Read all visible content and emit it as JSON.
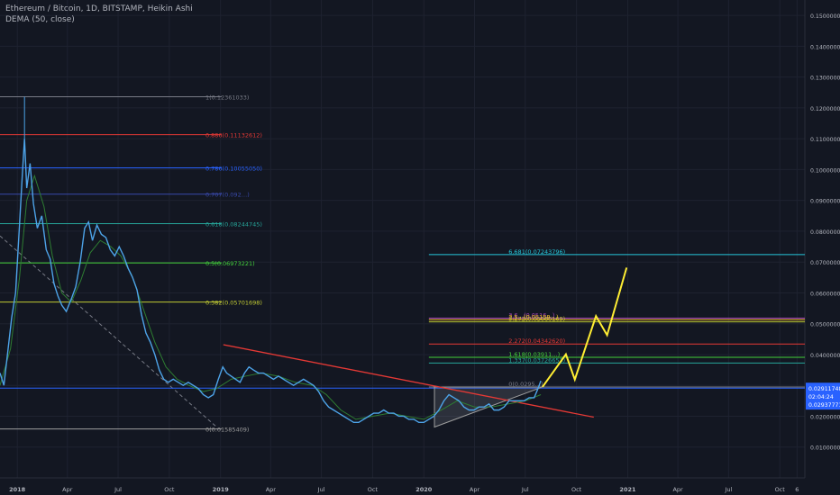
{
  "legend": {
    "title": "Ethereum / Bitcoin, 1D, BITSTAMP, Heikin Ashi",
    "indicator": "DEMA (50, close)"
  },
  "chart_data": {
    "type": "line",
    "title": "Ethereum / Bitcoin, 1D, BITSTAMP, Heikin Ashi",
    "xlabel": "",
    "ylabel": "",
    "grid": true,
    "ylim": [
      0,
      0.155
    ],
    "xlim": [
      "2017-12-01",
      "2021-11-15"
    ],
    "x_ticks": [
      {
        "date": "2018-01-01",
        "label": "2018",
        "bold": true
      },
      {
        "date": "2018-04-01",
        "label": "Apr"
      },
      {
        "date": "2018-07-01",
        "label": "Jul"
      },
      {
        "date": "2018-10-01",
        "label": "Oct"
      },
      {
        "date": "2019-01-01",
        "label": "2019",
        "bold": true
      },
      {
        "date": "2019-04-01",
        "label": "Apr"
      },
      {
        "date": "2019-07-01",
        "label": "Jul"
      },
      {
        "date": "2019-10-01",
        "label": "Oct"
      },
      {
        "date": "2020-01-01",
        "label": "2020",
        "bold": true
      },
      {
        "date": "2020-04-01",
        "label": "Apr"
      },
      {
        "date": "2020-07-01",
        "label": "Jul"
      },
      {
        "date": "2020-10-01",
        "label": "Oct"
      },
      {
        "date": "2021-01-01",
        "label": "2021",
        "bold": true
      },
      {
        "date": "2021-04-01",
        "label": "Apr"
      },
      {
        "date": "2021-07-01",
        "label": "Jul"
      },
      {
        "date": "2021-10-01",
        "label": "Oct"
      },
      {
        "date": "2021-11-01",
        "label": "6"
      }
    ],
    "y_ticks": [
      {
        "value": 0.15,
        "label": "0.15000000"
      },
      {
        "value": 0.14,
        "label": "0.14000000"
      },
      {
        "value": 0.13,
        "label": "0.13000000"
      },
      {
        "value": 0.12,
        "label": "0.12000000"
      },
      {
        "value": 0.11,
        "label": "0.11000000"
      },
      {
        "value": 0.1,
        "label": "0.10000000"
      },
      {
        "value": 0.09,
        "label": "0.09000000"
      },
      {
        "value": 0.08,
        "label": "0.08000000"
      },
      {
        "value": 0.07,
        "label": "0.07000000"
      },
      {
        "value": 0.06,
        "label": "0.06000000"
      },
      {
        "value": 0.05,
        "label": "0.05000000"
      },
      {
        "value": 0.04,
        "label": "0.04000000"
      },
      {
        "value": 0.03,
        "label": "0.03000000"
      },
      {
        "value": 0.02,
        "label": "0.02000000"
      },
      {
        "value": 0.01,
        "label": "0.01000000"
      }
    ],
    "price_badges": [
      {
        "value": 0.02911748,
        "label": "0.02911748",
        "color": "#2962ff"
      },
      {
        "value": 0.0265,
        "label": "02:04:24",
        "color": "#2962ff"
      },
      {
        "value": 0.0239,
        "label": "0.02937771",
        "color": "#2962ff"
      }
    ],
    "price_series": {
      "name": "",
      "color": "#4da3e8",
      "points": [
        [
          "2017-12-01",
          0.034
        ],
        [
          "2017-12-08",
          0.03
        ],
        [
          "2017-12-15",
          0.041
        ],
        [
          "2017-12-22",
          0.052
        ],
        [
          "2017-12-29",
          0.06
        ],
        [
          "2018-01-05",
          0.082
        ],
        [
          "2018-01-10",
          0.098
        ],
        [
          "2018-01-14",
          0.11
        ],
        [
          "2018-01-18",
          0.094
        ],
        [
          "2018-01-24",
          0.102
        ],
        [
          "2018-01-30",
          0.089
        ],
        [
          "2018-02-06",
          0.081
        ],
        [
          "2018-02-14",
          0.085
        ],
        [
          "2018-02-22",
          0.074
        ],
        [
          "2018-03-01",
          0.071
        ],
        [
          "2018-03-08",
          0.063
        ],
        [
          "2018-03-15",
          0.059
        ],
        [
          "2018-03-22",
          0.056
        ],
        [
          "2018-03-30",
          0.054
        ],
        [
          "2018-04-08",
          0.058
        ],
        [
          "2018-04-16",
          0.062
        ],
        [
          "2018-04-24",
          0.07
        ],
        [
          "2018-05-02",
          0.081
        ],
        [
          "2018-05-09",
          0.083
        ],
        [
          "2018-05-16",
          0.077
        ],
        [
          "2018-05-24",
          0.082
        ],
        [
          "2018-06-01",
          0.079
        ],
        [
          "2018-06-09",
          0.078
        ],
        [
          "2018-06-17",
          0.074
        ],
        [
          "2018-06-25",
          0.072
        ],
        [
          "2018-07-03",
          0.075
        ],
        [
          "2018-07-11",
          0.072
        ],
        [
          "2018-07-19",
          0.068
        ],
        [
          "2018-07-27",
          0.065
        ],
        [
          "2018-08-04",
          0.061
        ],
        [
          "2018-08-12",
          0.053
        ],
        [
          "2018-08-20",
          0.047
        ],
        [
          "2018-08-28",
          0.044
        ],
        [
          "2018-09-05",
          0.04
        ],
        [
          "2018-09-13",
          0.035
        ],
        [
          "2018-09-21",
          0.032
        ],
        [
          "2018-09-29",
          0.031
        ],
        [
          "2018-10-08",
          0.032
        ],
        [
          "2018-10-17",
          0.031
        ],
        [
          "2018-10-26",
          0.03
        ],
        [
          "2018-11-04",
          0.031
        ],
        [
          "2018-11-13",
          0.03
        ],
        [
          "2018-11-22",
          0.029
        ],
        [
          "2018-12-01",
          0.027
        ],
        [
          "2018-12-10",
          0.026
        ],
        [
          "2018-12-19",
          0.027
        ],
        [
          "2018-12-28",
          0.032
        ],
        [
          "2019-01-05",
          0.036
        ],
        [
          "2019-01-12",
          0.034
        ],
        [
          "2019-01-20",
          0.033
        ],
        [
          "2019-01-28",
          0.032
        ],
        [
          "2019-02-05",
          0.031
        ],
        [
          "2019-02-13",
          0.034
        ],
        [
          "2019-02-21",
          0.036
        ],
        [
          "2019-03-01",
          0.035
        ],
        [
          "2019-03-10",
          0.034
        ],
        [
          "2019-03-19",
          0.034
        ],
        [
          "2019-03-28",
          0.033
        ],
        [
          "2019-04-06",
          0.032
        ],
        [
          "2019-04-15",
          0.033
        ],
        [
          "2019-04-24",
          0.032
        ],
        [
          "2019-05-03",
          0.031
        ],
        [
          "2019-05-12",
          0.03
        ],
        [
          "2019-05-21",
          0.031
        ],
        [
          "2019-05-30",
          0.032
        ],
        [
          "2019-06-08",
          0.031
        ],
        [
          "2019-06-17",
          0.03
        ],
        [
          "2019-06-26",
          0.028
        ],
        [
          "2019-07-05",
          0.025
        ],
        [
          "2019-07-14",
          0.023
        ],
        [
          "2019-07-23",
          0.022
        ],
        [
          "2019-08-01",
          0.021
        ],
        [
          "2019-08-10",
          0.02
        ],
        [
          "2019-08-19",
          0.019
        ],
        [
          "2019-08-28",
          0.018
        ],
        [
          "2019-09-06",
          0.018
        ],
        [
          "2019-09-15",
          0.019
        ],
        [
          "2019-09-24",
          0.02
        ],
        [
          "2019-10-03",
          0.021
        ],
        [
          "2019-10-12",
          0.021
        ],
        [
          "2019-10-21",
          0.022
        ],
        [
          "2019-10-30",
          0.021
        ],
        [
          "2019-11-08",
          0.021
        ],
        [
          "2019-11-17",
          0.02
        ],
        [
          "2019-11-26",
          0.02
        ],
        [
          "2019-12-05",
          0.019
        ],
        [
          "2019-12-14",
          0.019
        ],
        [
          "2019-12-23",
          0.018
        ],
        [
          "2020-01-01",
          0.018
        ],
        [
          "2020-01-10",
          0.019
        ],
        [
          "2020-01-19",
          0.02
        ],
        [
          "2020-01-28",
          0.022
        ],
        [
          "2020-02-06",
          0.025
        ],
        [
          "2020-02-15",
          0.027
        ],
        [
          "2020-02-24",
          0.026
        ],
        [
          "2020-03-04",
          0.025
        ],
        [
          "2020-03-13",
          0.023
        ],
        [
          "2020-03-22",
          0.022
        ],
        [
          "2020-03-31",
          0.022
        ],
        [
          "2020-04-09",
          0.023
        ],
        [
          "2020-04-18",
          0.023
        ],
        [
          "2020-04-27",
          0.024
        ],
        [
          "2020-05-06",
          0.022
        ],
        [
          "2020-05-15",
          0.022
        ],
        [
          "2020-05-24",
          0.023
        ],
        [
          "2020-06-02",
          0.025
        ],
        [
          "2020-06-11",
          0.025
        ],
        [
          "2020-06-20",
          0.025
        ],
        [
          "2020-06-29",
          0.025
        ],
        [
          "2020-07-08",
          0.026
        ],
        [
          "2020-07-17",
          0.026
        ],
        [
          "2020-07-24",
          0.029
        ],
        [
          "2020-07-29",
          0.0315
        ]
      ]
    },
    "dema_series": {
      "name": "DEMA (50, close)",
      "color": "#2e7d32",
      "points": [
        [
          "2017-12-01",
          0.03
        ],
        [
          "2017-12-20",
          0.042
        ],
        [
          "2018-01-05",
          0.065
        ],
        [
          "2018-01-18",
          0.09
        ],
        [
          "2018-02-01",
          0.098
        ],
        [
          "2018-02-18",
          0.088
        ],
        [
          "2018-03-05",
          0.072
        ],
        [
          "2018-03-22",
          0.06
        ],
        [
          "2018-04-08",
          0.057
        ],
        [
          "2018-04-25",
          0.064
        ],
        [
          "2018-05-12",
          0.073
        ],
        [
          "2018-05-30",
          0.077
        ],
        [
          "2018-06-18",
          0.075
        ],
        [
          "2018-07-06",
          0.072
        ],
        [
          "2018-07-25",
          0.066
        ],
        [
          "2018-08-15",
          0.055
        ],
        [
          "2018-09-05",
          0.044
        ],
        [
          "2018-09-25",
          0.036
        ],
        [
          "2018-10-15",
          0.032
        ],
        [
          "2018-11-05",
          0.03
        ],
        [
          "2018-12-01",
          0.028
        ],
        [
          "2018-12-25",
          0.029
        ],
        [
          "2019-01-20",
          0.032
        ],
        [
          "2019-02-15",
          0.033
        ],
        [
          "2019-03-15",
          0.034
        ],
        [
          "2019-04-15",
          0.033
        ],
        [
          "2019-05-15",
          0.031
        ],
        [
          "2019-06-15",
          0.03
        ],
        [
          "2019-07-10",
          0.027
        ],
        [
          "2019-08-05",
          0.022
        ],
        [
          "2019-09-01",
          0.019
        ],
        [
          "2019-10-01",
          0.02
        ],
        [
          "2019-11-01",
          0.021
        ],
        [
          "2019-12-01",
          0.02
        ],
        [
          "2020-01-01",
          0.019
        ],
        [
          "2020-02-01",
          0.022
        ],
        [
          "2020-03-01",
          0.025
        ],
        [
          "2020-04-01",
          0.023
        ],
        [
          "2020-05-01",
          0.023
        ],
        [
          "2020-06-01",
          0.024
        ],
        [
          "2020-07-01",
          0.025
        ],
        [
          "2020-07-29",
          0.027
        ]
      ]
    },
    "fib_retracement": [
      {
        "level": "1",
        "value": 0.12361033,
        "label": "1(0.12361033)",
        "color": "#787b86"
      },
      {
        "level": "0.886",
        "value": 0.11132612,
        "label": "0.886(0.11132612)",
        "color": "#e53935"
      },
      {
        "level": "0.786",
        "value": 0.1005505,
        "label": "0.786(0.10055050)",
        "color": "#2962ff"
      },
      {
        "level": "0.707",
        "value": 0.09204,
        "label": "0.707(0.092…)",
        "color": "#3949ab"
      },
      {
        "level": "0.618",
        "value": 0.08244745,
        "label": "0.618(0.08244745)",
        "color": "#26a69a"
      },
      {
        "level": "0.5",
        "value": 0.06973221,
        "label": "0.5(0.06973221)",
        "color": "#43d13a"
      },
      {
        "level": "0.382",
        "value": 0.05701698,
        "label": "0.382(0.05701698)",
        "color": "#c0ca33"
      },
      {
        "level": "0",
        "value": 0.01585409,
        "label": "0(0.01585409)",
        "color": "#9e9e9e"
      }
    ],
    "fib_extension": [
      {
        "value": 0.07243796,
        "label": "6.681(0.07243796)",
        "color": "#26c6da"
      },
      {
        "value": 0.0518,
        "label": "3.6…(0.0516…)",
        "color": "#ab47bc"
      },
      {
        "value": 0.0513,
        "label": "3.5…(0.05158…)",
        "color": "#fbc02d"
      },
      {
        "value": 0.05060169,
        "label": "3.272(0.05060169)",
        "color": "#c0ca33"
      },
      {
        "value": 0.0434262,
        "label": "2.272(0.04342620)",
        "color": "#e53935"
      },
      {
        "value": 0.0391,
        "label": "1.618(0.03911…)",
        "color": "#43d13a"
      },
      {
        "value": 0.03726653,
        "label": "1.337(0.03726653)",
        "color": "#26a69a"
      },
      {
        "value": 0.0295,
        "label": "0(0.0295…)",
        "color": "#787b86"
      }
    ],
    "downtrend_line": {
      "from": [
        "2019-01-06",
        0.0432
      ],
      "to": [
        "2020-11-01",
        0.0197
      ],
      "color": "#e53935"
    },
    "projection_path": {
      "color": "#ffee33",
      "points": [
        [
          "2020-08-01",
          0.0295
        ],
        [
          "2020-09-12",
          0.0401
        ],
        [
          "2020-09-28",
          0.0319
        ],
        [
          "2020-11-05",
          0.0525
        ],
        [
          "2020-11-25",
          0.0463
        ],
        [
          "2020-12-30",
          0.0682
        ]
      ]
    },
    "triangle": {
      "points": [
        [
          "2020-01-20",
          0.0295
        ],
        [
          "2020-08-01",
          0.0295
        ],
        [
          "2020-01-20",
          0.0165
        ]
      ],
      "color": "#9e9e9e"
    },
    "dashed_diagonal": {
      "from": [
        "2017-12-01",
        0.0785
      ],
      "to": [
        "2018-12-25",
        0.0165
      ],
      "color": "#787b86"
    }
  }
}
